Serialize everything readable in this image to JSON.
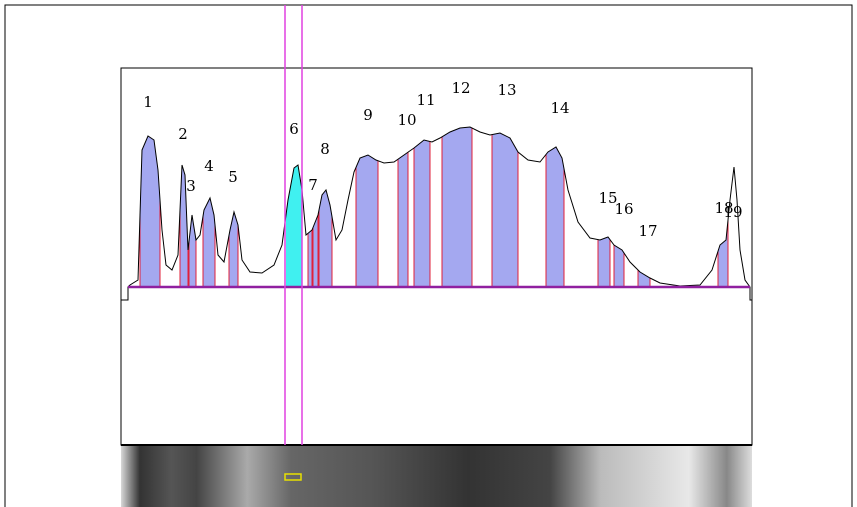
{
  "peaks": [
    {
      "label": "1"
    },
    {
      "label": "2"
    },
    {
      "label": "3"
    },
    {
      "label": "4"
    },
    {
      "label": "5"
    },
    {
      "label": "6"
    },
    {
      "label": "7"
    },
    {
      "label": "8"
    },
    {
      "label": "9"
    },
    {
      "label": "10"
    },
    {
      "label": "11"
    },
    {
      "label": "12"
    },
    {
      "label": "13"
    },
    {
      "label": "14"
    },
    {
      "label": "15"
    },
    {
      "label": "16"
    },
    {
      "label": "17"
    },
    {
      "label": "18"
    },
    {
      "label": "19"
    }
  ]
}
